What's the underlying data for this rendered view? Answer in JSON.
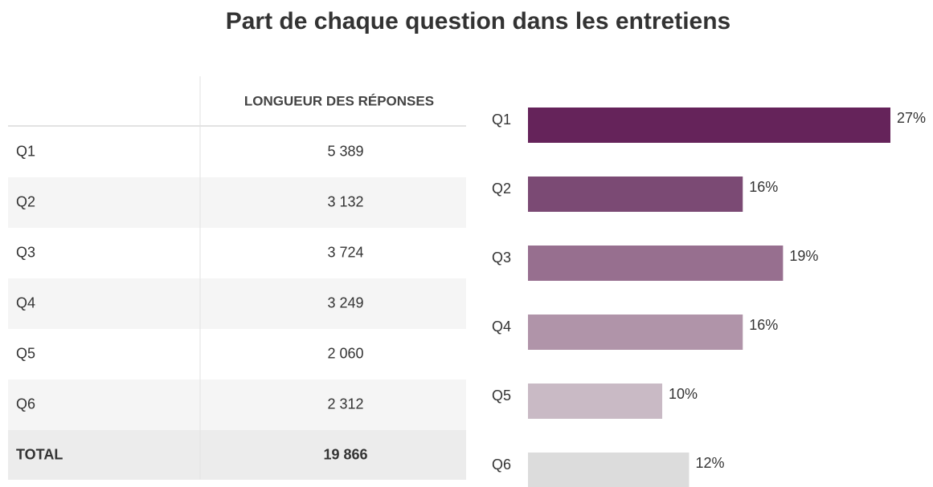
{
  "title": "Part de chaque question dans les entretiens",
  "table": {
    "header": "LONGUEUR DES RÉPONSES",
    "rows": [
      [
        "Q1",
        "5 389"
      ],
      [
        "Q2",
        "3 132"
      ],
      [
        "Q3",
        "3 724"
      ],
      [
        "Q4",
        "3 249"
      ],
      [
        "Q5",
        "2 060"
      ],
      [
        "Q6",
        "2 312"
      ]
    ],
    "total": [
      "TOTAL",
      "19 866"
    ]
  },
  "chart_data": {
    "type": "bar",
    "orientation": "horizontal",
    "categories": [
      "Q1",
      "Q2",
      "Q3",
      "Q4",
      "Q5",
      "Q6"
    ],
    "values": [
      27,
      16,
      19,
      16,
      10,
      12
    ],
    "value_labels": [
      "27%",
      "16%",
      "19%",
      "16%",
      "10%",
      "12%"
    ],
    "colors": [
      "#65235a",
      "#7b4a74",
      "#976f8f",
      "#b094a9",
      "#c9bac5",
      "#dcdcdc"
    ]
  }
}
